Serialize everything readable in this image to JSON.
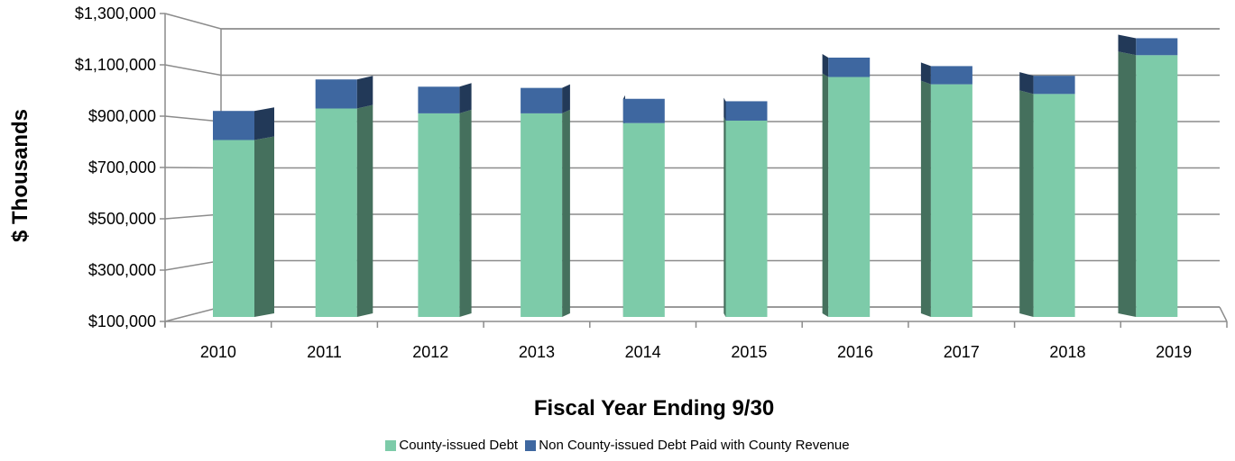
{
  "chart_data": {
    "type": "bar",
    "stacked": true,
    "style": "3d",
    "title": "",
    "xlabel": "Fiscal Year Ending 9/30",
    "ylabel": "$ Thousands",
    "categories": [
      "2010",
      "2011",
      "2012",
      "2013",
      "2014",
      "2015",
      "2016",
      "2017",
      "2018",
      "2019"
    ],
    "series": [
      {
        "name": "County-issued Debt",
        "color": "#7dcba9",
        "values": [
          830000,
          960000,
          940000,
          940000,
          900000,
          910000,
          1090000,
          1060000,
          1020000,
          1180000
        ]
      },
      {
        "name": "Non County-issued Debt Paid with County Revenue",
        "color": "#3e67a0",
        "values": [
          120000,
          120000,
          110000,
          105000,
          100000,
          80000,
          80000,
          75000,
          75000,
          70000
        ]
      }
    ],
    "ylim": [
      100000,
      1300000
    ],
    "yticks": [
      "$100,000",
      "$300,000",
      "$500,000",
      "$700,000",
      "$900,000",
      "$1,100,000",
      "$1,300,000"
    ],
    "ytick_values": [
      100000,
      300000,
      500000,
      700000,
      900000,
      1100000,
      1300000
    ],
    "grid": true,
    "legend_position": "bottom"
  }
}
